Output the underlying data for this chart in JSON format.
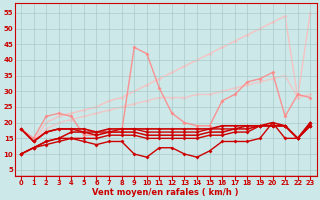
{
  "background_color": "#cce8e8",
  "grid_color": "#aacccc",
  "xlabel": "Vent moyen/en rafales ( km/h )",
  "ylabel_ticks": [
    5,
    10,
    15,
    20,
    25,
    30,
    35,
    40,
    45,
    50,
    55
  ],
  "xlim": [
    -0.5,
    23.5
  ],
  "ylim": [
    3,
    58
  ],
  "x": [
    0,
    1,
    2,
    3,
    4,
    5,
    6,
    7,
    8,
    9,
    10,
    11,
    12,
    13,
    14,
    15,
    16,
    17,
    18,
    19,
    20,
    21,
    22,
    23
  ],
  "series": [
    {
      "y": [
        18,
        14,
        20,
        22,
        23,
        24,
        25,
        27,
        28,
        30,
        32,
        34,
        36,
        38,
        40,
        42,
        44,
        46,
        48,
        50,
        52,
        54,
        28,
        55
      ],
      "color": "#ffbbbb",
      "lw": 1.0,
      "marker": "D",
      "ms": 2.0,
      "alpha": 0.85,
      "zorder": 1
    },
    {
      "y": [
        18,
        14,
        18,
        20,
        21,
        22,
        23,
        24,
        25,
        26,
        27,
        28,
        28,
        28,
        29,
        29,
        30,
        31,
        32,
        33,
        34,
        35,
        28,
        29
      ],
      "color": "#ffbbbb",
      "lw": 1.0,
      "marker": "D",
      "ms": 2.0,
      "alpha": 0.75,
      "zorder": 1
    },
    {
      "y": [
        18,
        15,
        22,
        23,
        22,
        16,
        16,
        17,
        17,
        44,
        42,
        31,
        23,
        20,
        19,
        19,
        27,
        29,
        33,
        34,
        36,
        22,
        29,
        28
      ],
      "color": "#ff8888",
      "lw": 1.0,
      "marker": "D",
      "ms": 2.0,
      "alpha": 0.9,
      "zorder": 2
    },
    {
      "y": [
        10,
        12,
        13,
        14,
        15,
        14,
        13,
        14,
        14,
        10,
        9,
        12,
        12,
        10,
        9,
        11,
        14,
        14,
        14,
        15,
        20,
        15,
        15,
        20
      ],
      "color": "#cc0000",
      "lw": 1.0,
      "marker": "D",
      "ms": 2.0,
      "alpha": 1.0,
      "zorder": 4
    },
    {
      "y": [
        10,
        12,
        14,
        15,
        15,
        15,
        15,
        16,
        16,
        16,
        15,
        15,
        15,
        15,
        15,
        16,
        16,
        17,
        17,
        19,
        19,
        19,
        15,
        19
      ],
      "color": "#cc0000",
      "lw": 1.0,
      "marker": "D",
      "ms": 2.0,
      "alpha": 1.0,
      "zorder": 4
    },
    {
      "y": [
        10,
        12,
        14,
        15,
        17,
        17,
        16,
        17,
        17,
        17,
        16,
        16,
        16,
        16,
        16,
        17,
        17,
        18,
        18,
        19,
        19,
        19,
        15,
        19
      ],
      "color": "#cc0000",
      "lw": 1.1,
      "marker": "D",
      "ms": 2.0,
      "alpha": 1.0,
      "zorder": 4
    },
    {
      "y": [
        18,
        14,
        17,
        18,
        18,
        17,
        17,
        17,
        18,
        18,
        17,
        17,
        17,
        17,
        17,
        18,
        18,
        18,
        19,
        19,
        19,
        19,
        15,
        19
      ],
      "color": "#cc0000",
      "lw": 1.0,
      "marker": "D",
      "ms": 2.0,
      "alpha": 1.0,
      "zorder": 4
    },
    {
      "y": [
        18,
        14,
        17,
        18,
        18,
        18,
        17,
        18,
        18,
        18,
        18,
        18,
        18,
        18,
        18,
        18,
        19,
        19,
        19,
        19,
        20,
        19,
        15,
        20
      ],
      "color": "#cc0000",
      "lw": 1.2,
      "marker": "D",
      "ms": 2.0,
      "alpha": 1.0,
      "zorder": 4
    }
  ],
  "tick_color": "#cc0000",
  "label_color": "#cc0000",
  "axis_color": "#cc0000"
}
